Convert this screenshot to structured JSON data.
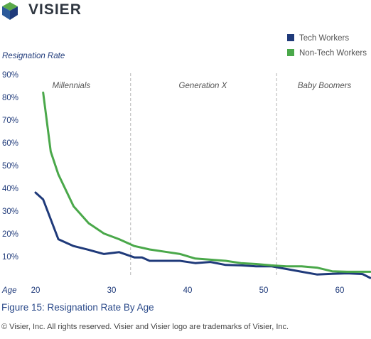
{
  "brand": {
    "name": "VISIER",
    "colors": {
      "blue": "#1f3a7a",
      "green": "#4aa84a",
      "grey": "#7a8a99"
    }
  },
  "caption": "Figure 15: Resignation Rate By Age",
  "copyright": "© Visier, Inc. All rights reserved. Visier and Visier logo are trademarks of Visier, Inc.",
  "chart_data": {
    "type": "line",
    "ylabel": "Resignation Rate",
    "xlabel": "Age",
    "xlim": [
      17,
      64
    ],
    "ylim": [
      0,
      90
    ],
    "x_ticks": [
      20,
      30,
      40,
      50,
      60
    ],
    "y_ticks": [
      {
        "value": 10,
        "label": "10%"
      },
      {
        "value": 20,
        "label": "20%"
      },
      {
        "value": 30,
        "label": "30%"
      },
      {
        "value": 40,
        "label": "40%"
      },
      {
        "value": 50,
        "label": "50%"
      },
      {
        "value": 60,
        "label": "60%"
      },
      {
        "value": 70,
        "label": "70%"
      },
      {
        "value": 80,
        "label": "80%"
      },
      {
        "value": 90,
        "label": "90%"
      }
    ],
    "grid": false,
    "legend_position": "top-right",
    "dividers": [
      32.5,
      51.7
    ],
    "regions": [
      {
        "label": "Millennials",
        "center": 24.7
      },
      {
        "label": "Generation X",
        "center": 42.0
      },
      {
        "label": "Baby Boomers",
        "center": 58.0
      }
    ],
    "series": [
      {
        "name": "Tech Workers",
        "color": "#1f3a7a",
        "x": [
          20,
          21,
          23,
          25,
          27,
          29,
          31,
          33,
          34,
          35,
          37,
          39,
          41,
          43,
          45,
          47,
          49,
          51,
          53,
          55,
          57,
          59,
          61,
          63,
          64
        ],
        "y": [
          40,
          37,
          19.5,
          16.5,
          14.8,
          13,
          13.8,
          11.5,
          11.5,
          10,
          10,
          10,
          9,
          9.5,
          8.2,
          8,
          7.6,
          7.6,
          6.4,
          5.2,
          4,
          4.3,
          4.5,
          4.2,
          2.5
        ]
      },
      {
        "name": "Non-Tech Workers",
        "color": "#4aa84a",
        "x": [
          21,
          22,
          23,
          25,
          27,
          29,
          31,
          33,
          35,
          37,
          39,
          41,
          43,
          45,
          47,
          49,
          51,
          53,
          55,
          57,
          59,
          61,
          63,
          64
        ],
        "y": [
          84,
          58,
          48,
          34,
          26.5,
          22,
          19.5,
          16.5,
          15,
          14,
          13,
          11,
          10.5,
          10,
          9,
          8.6,
          8,
          7.6,
          7.6,
          7,
          5.4,
          5.2,
          5.2,
          5.2
        ]
      }
    ]
  }
}
